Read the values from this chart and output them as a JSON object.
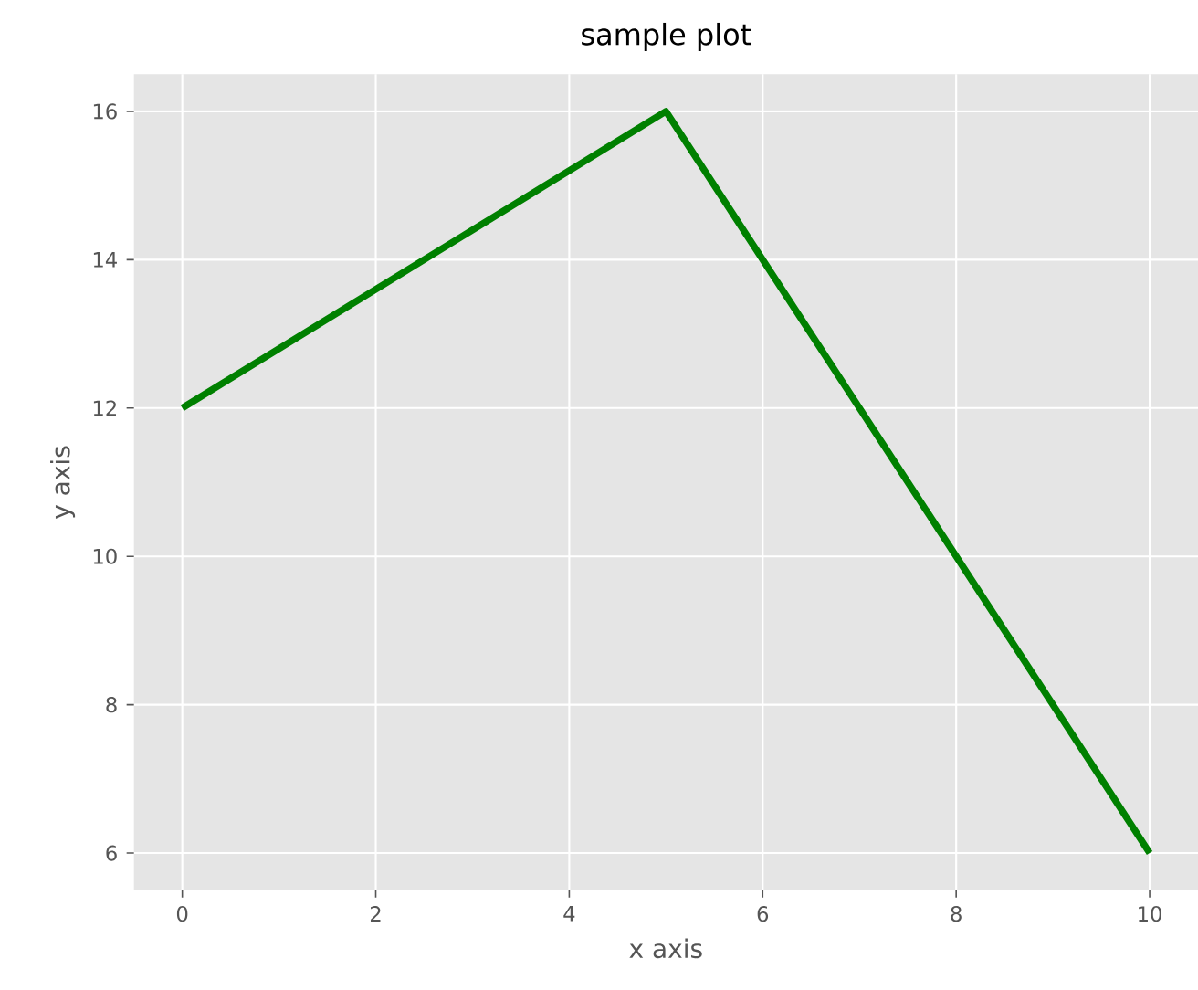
{
  "chart_data": {
    "type": "line",
    "title": "sample plot",
    "xlabel": "x axis",
    "ylabel": "y axis",
    "x": [
      0,
      5,
      10
    ],
    "series": [
      {
        "color": "#008000",
        "values": [
          12,
          16,
          6
        ]
      }
    ],
    "xlim": [
      -0.5,
      10.5
    ],
    "ylim": [
      5.5,
      16.5
    ],
    "xticks": [
      0,
      2,
      4,
      6,
      8,
      10
    ],
    "yticks": [
      6,
      8,
      10,
      12,
      14,
      16
    ],
    "grid": true,
    "marker": "none",
    "line_style": "solid"
  }
}
